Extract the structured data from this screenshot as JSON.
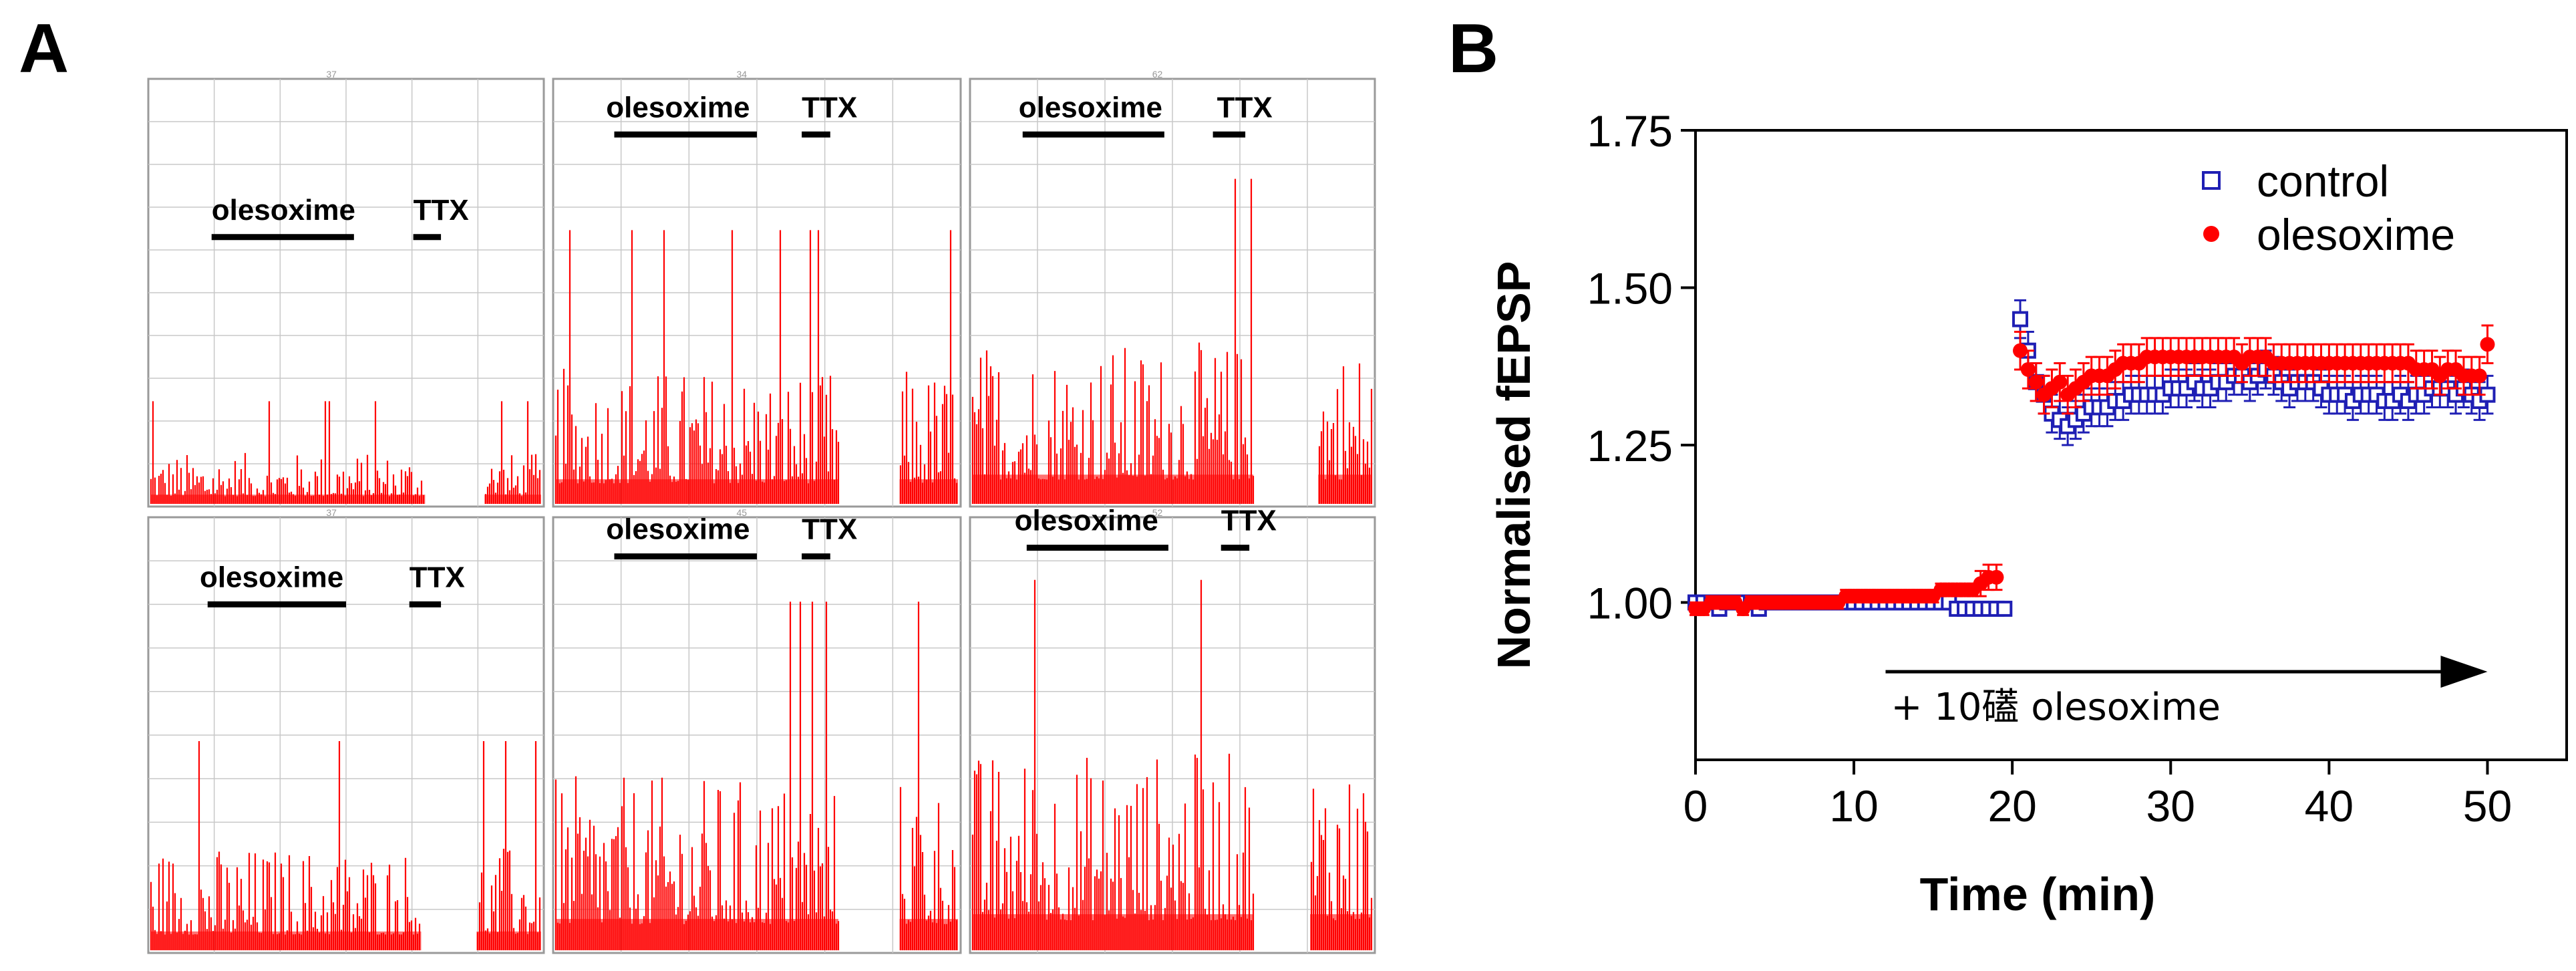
{
  "panel_labels": {
    "a": "A",
    "b": "B"
  },
  "colors": {
    "trace": "#ff0000",
    "trace_dark": "#b00000",
    "control": "#1f1fb4",
    "olesoxime": "#ff0000",
    "grid": "#c8c8c8",
    "axis": "#000000"
  },
  "panel_a": {
    "panels": [
      {
        "drug_label": "olesoxime",
        "blocker_label": "TTX",
        "amplitude_level": 0.12,
        "top_tick": "37"
      },
      {
        "drug_label": "olesoxime",
        "blocker_label": "TTX",
        "amplitude_level": 0.32,
        "top_tick": "34"
      },
      {
        "drug_label": "olesoxime",
        "blocker_label": "TTX",
        "amplitude_level": 0.38,
        "top_tick": "62"
      },
      {
        "drug_label": "olesoxime",
        "blocker_label": "TTX",
        "amplitude_level": 0.24,
        "top_tick": "37"
      },
      {
        "drug_label": "olesoxime",
        "blocker_label": "TTX",
        "amplitude_level": 0.4,
        "top_tick": "45"
      },
      {
        "drug_label": "olesoxime",
        "blocker_label": "TTX",
        "amplitude_level": 0.46,
        "top_tick": "52"
      }
    ]
  },
  "chart_data": {
    "type": "scatter",
    "title": "",
    "xlabel": "Time (min)",
    "ylabel": "Normalised fEPSP",
    "xlim": [
      0,
      55
    ],
    "ylim": [
      0.75,
      1.75
    ],
    "xticks": [
      0,
      10,
      20,
      30,
      40,
      50
    ],
    "xtick_labels": [
      "0",
      "10",
      "20",
      "30",
      "40",
      "50"
    ],
    "yticks": [
      1.0,
      1.25,
      1.5,
      1.75
    ],
    "ytick_labels": [
      "1.00",
      "1.25",
      "1.50",
      "1.75"
    ],
    "legend_position": "top-right",
    "annotation": "+ 10礚 olesoxime",
    "annotation_arrow_x": [
      12,
      50
    ],
    "annotation_arrow_y": 0.89,
    "series": [
      {
        "name": "control",
        "marker": "open-square",
        "color": "#1f1fb4",
        "x": [
          0,
          0.5,
          1,
          1.5,
          2,
          2.5,
          3,
          3.5,
          4,
          4.5,
          5,
          5.5,
          6,
          6.5,
          7,
          7.5,
          8,
          8.5,
          9,
          9.5,
          10,
          10.5,
          11,
          11.5,
          12,
          12.5,
          13,
          13.5,
          14,
          14.5,
          15,
          15.5,
          16,
          16.5,
          17,
          17.5,
          18,
          18.5,
          19,
          19.5,
          20.5,
          21,
          21.5,
          22,
          22.5,
          23,
          23.5,
          24,
          24.5,
          25,
          25.5,
          26,
          26.5,
          27,
          27.5,
          28,
          28.5,
          29,
          29.5,
          30,
          30.5,
          31,
          31.5,
          32,
          32.5,
          33,
          33.5,
          34,
          34.5,
          35,
          35.5,
          36,
          36.5,
          37,
          37.5,
          38,
          38.5,
          39,
          39.5,
          40,
          40.5,
          41,
          41.5,
          42,
          42.5,
          43,
          43.5,
          44,
          44.5,
          45,
          45.5,
          46,
          46.5,
          47,
          47.5,
          48,
          48.5,
          49,
          49.5,
          50
        ],
        "y": [
          1.0,
          1.0,
          1.0,
          0.99,
          1.0,
          1.0,
          1.0,
          1.0,
          0.99,
          1.0,
          1.0,
          1.0,
          1.0,
          1.0,
          1.0,
          1.0,
          1.0,
          1.0,
          1.0,
          1.0,
          1.0,
          1.0,
          1.0,
          1.0,
          1.0,
          1.0,
          1.0,
          1.0,
          1.0,
          1.0,
          1.0,
          1.0,
          1.0,
          0.99,
          0.99,
          0.99,
          0.99,
          0.99,
          0.99,
          0.99,
          1.45,
          1.4,
          1.35,
          1.33,
          1.3,
          1.29,
          1.28,
          1.29,
          1.3,
          1.31,
          1.31,
          1.31,
          1.32,
          1.32,
          1.33,
          1.33,
          1.33,
          1.33,
          1.33,
          1.34,
          1.34,
          1.34,
          1.35,
          1.34,
          1.34,
          1.35,
          1.35,
          1.36,
          1.36,
          1.35,
          1.36,
          1.37,
          1.36,
          1.35,
          1.34,
          1.35,
          1.35,
          1.35,
          1.34,
          1.33,
          1.33,
          1.33,
          1.32,
          1.33,
          1.33,
          1.33,
          1.32,
          1.32,
          1.33,
          1.32,
          1.33,
          1.33,
          1.34,
          1.34,
          1.34,
          1.33,
          1.34,
          1.33,
          1.32,
          1.33
        ],
        "err": [
          0.01,
          0.01,
          0.01,
          0.01,
          0.01,
          0.01,
          0.01,
          0.01,
          0.01,
          0.01,
          0.01,
          0.01,
          0.01,
          0.01,
          0.01,
          0.01,
          0.01,
          0.01,
          0.01,
          0.01,
          0.01,
          0.01,
          0.01,
          0.01,
          0.01,
          0.01,
          0.01,
          0.01,
          0.01,
          0.01,
          0.01,
          0.01,
          0.01,
          0.01,
          0.01,
          0.01,
          0.01,
          0.01,
          0.01,
          0.01,
          0.03,
          0.03,
          0.03,
          0.03,
          0.03,
          0.03,
          0.03,
          0.03,
          0.03,
          0.03,
          0.03,
          0.03,
          0.03,
          0.03,
          0.03,
          0.03,
          0.03,
          0.03,
          0.03,
          0.03,
          0.03,
          0.03,
          0.03,
          0.03,
          0.03,
          0.03,
          0.03,
          0.03,
          0.03,
          0.03,
          0.03,
          0.03,
          0.03,
          0.03,
          0.03,
          0.03,
          0.03,
          0.03,
          0.03,
          0.03,
          0.03,
          0.03,
          0.03,
          0.03,
          0.03,
          0.03,
          0.03,
          0.03,
          0.03,
          0.03,
          0.03,
          0.03,
          0.03,
          0.03,
          0.03,
          0.03,
          0.03,
          0.03,
          0.03,
          0.03
        ]
      },
      {
        "name": "olesoxime",
        "marker": "filled-circle",
        "color": "#ff0000",
        "x": [
          0,
          0.5,
          1,
          1.5,
          2,
          2.5,
          3,
          3.5,
          4,
          4.5,
          5,
          5.5,
          6,
          6.5,
          7,
          7.5,
          8,
          8.5,
          9,
          9.5,
          10,
          10.5,
          11,
          11.5,
          12,
          12.5,
          13,
          13.5,
          14,
          14.5,
          15,
          15.5,
          16,
          16.5,
          17,
          17.5,
          18,
          18.5,
          19,
          20.5,
          21,
          21.5,
          22,
          22.5,
          23,
          23.5,
          24,
          24.5,
          25,
          25.5,
          26,
          26.5,
          27,
          27.5,
          28,
          28.5,
          29,
          29.5,
          30,
          30.5,
          31,
          31.5,
          32,
          32.5,
          33,
          33.5,
          34,
          34.5,
          35,
          35.5,
          36,
          36.5,
          37,
          37.5,
          38,
          38.5,
          39,
          39.5,
          40,
          40.5,
          41,
          41.5,
          42,
          42.5,
          43,
          43.5,
          44,
          44.5,
          45,
          45.5,
          46,
          46.5,
          47,
          47.5,
          48,
          48.5,
          49,
          49.5,
          50
        ],
        "y": [
          0.99,
          0.99,
          1.0,
          1.0,
          1.0,
          1.0,
          0.99,
          1.0,
          1.0,
          1.0,
          1.0,
          1.0,
          1.0,
          1.0,
          1.0,
          1.0,
          1.0,
          1.0,
          1.0,
          1.01,
          1.01,
          1.01,
          1.01,
          1.01,
          1.01,
          1.01,
          1.01,
          1.01,
          1.01,
          1.01,
          1.01,
          1.02,
          1.02,
          1.02,
          1.02,
          1.02,
          1.03,
          1.04,
          1.04,
          1.4,
          1.37,
          1.35,
          1.33,
          1.34,
          1.35,
          1.33,
          1.34,
          1.35,
          1.36,
          1.36,
          1.36,
          1.37,
          1.38,
          1.38,
          1.38,
          1.39,
          1.39,
          1.39,
          1.39,
          1.39,
          1.39,
          1.39,
          1.39,
          1.39,
          1.39,
          1.39,
          1.39,
          1.38,
          1.39,
          1.39,
          1.39,
          1.38,
          1.38,
          1.38,
          1.38,
          1.38,
          1.38,
          1.38,
          1.38,
          1.38,
          1.38,
          1.38,
          1.38,
          1.38,
          1.38,
          1.38,
          1.38,
          1.38,
          1.38,
          1.37,
          1.37,
          1.37,
          1.36,
          1.37,
          1.37,
          1.36,
          1.36,
          1.36,
          1.41
        ],
        "err": [
          0.01,
          0.01,
          0.01,
          0.01,
          0.01,
          0.01,
          0.01,
          0.01,
          0.01,
          0.01,
          0.01,
          0.01,
          0.01,
          0.01,
          0.01,
          0.01,
          0.01,
          0.01,
          0.01,
          0.01,
          0.01,
          0.01,
          0.01,
          0.01,
          0.01,
          0.01,
          0.01,
          0.01,
          0.01,
          0.01,
          0.01,
          0.01,
          0.01,
          0.01,
          0.01,
          0.01,
          0.02,
          0.02,
          0.02,
          0.03,
          0.03,
          0.03,
          0.03,
          0.03,
          0.03,
          0.03,
          0.03,
          0.03,
          0.03,
          0.03,
          0.03,
          0.03,
          0.03,
          0.03,
          0.03,
          0.03,
          0.03,
          0.03,
          0.03,
          0.03,
          0.03,
          0.03,
          0.03,
          0.03,
          0.03,
          0.03,
          0.03,
          0.03,
          0.03,
          0.03,
          0.03,
          0.03,
          0.03,
          0.03,
          0.03,
          0.03,
          0.03,
          0.03,
          0.03,
          0.03,
          0.03,
          0.03,
          0.03,
          0.03,
          0.03,
          0.03,
          0.03,
          0.03,
          0.03,
          0.03,
          0.03,
          0.03,
          0.03,
          0.03,
          0.03,
          0.03,
          0.03,
          0.03,
          0.03
        ]
      }
    ]
  }
}
